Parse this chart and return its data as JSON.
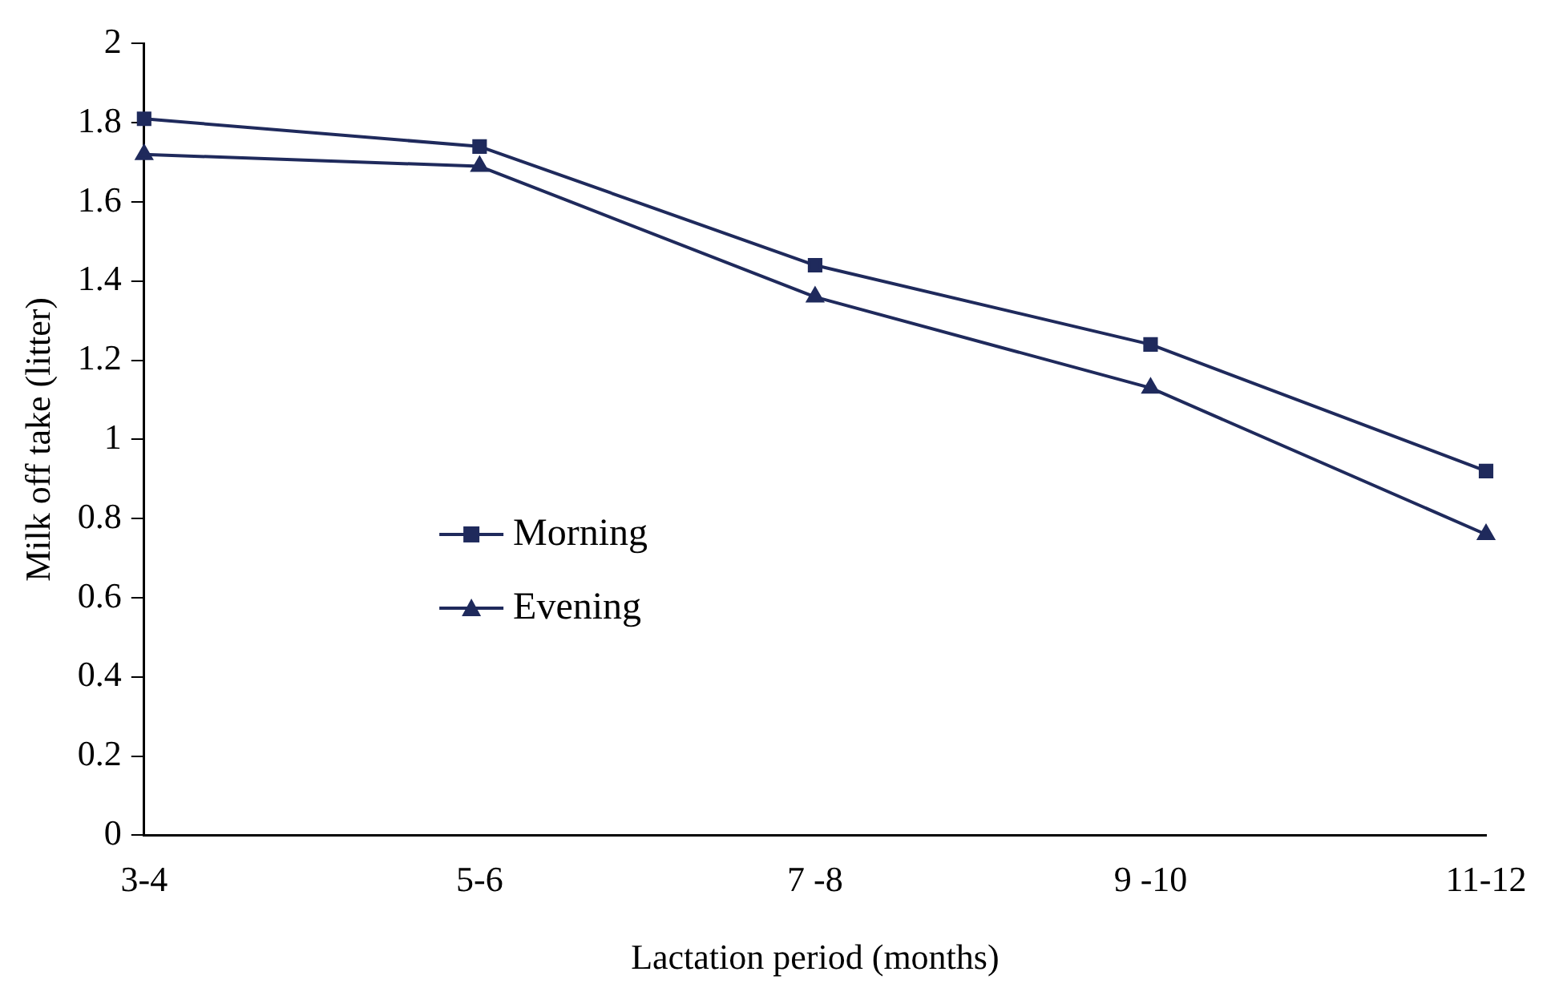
{
  "chart_data": {
    "type": "line",
    "xlabel": "Lactation period (months)",
    "ylabel": "Milk off take (litter)",
    "categories": [
      "3-4",
      "5-6",
      "7 -8",
      "9 -10",
      "11-12"
    ],
    "series": [
      {
        "name": "Morning",
        "color": "#1f2a5c",
        "marker": "square",
        "values": [
          1.81,
          1.74,
          1.44,
          1.24,
          0.92
        ]
      },
      {
        "name": "Evening",
        "color": "#1f2a5c",
        "marker": "triangle",
        "values": [
          1.72,
          1.69,
          1.36,
          1.13,
          0.76
        ]
      }
    ],
    "ylim": [
      0,
      2
    ],
    "yticks": [
      0,
      0.2,
      0.4,
      0.6,
      0.8,
      1,
      1.2,
      1.4,
      1.6,
      1.8,
      2
    ],
    "grid": false,
    "legend": "center left",
    "line_style": "solid"
  }
}
